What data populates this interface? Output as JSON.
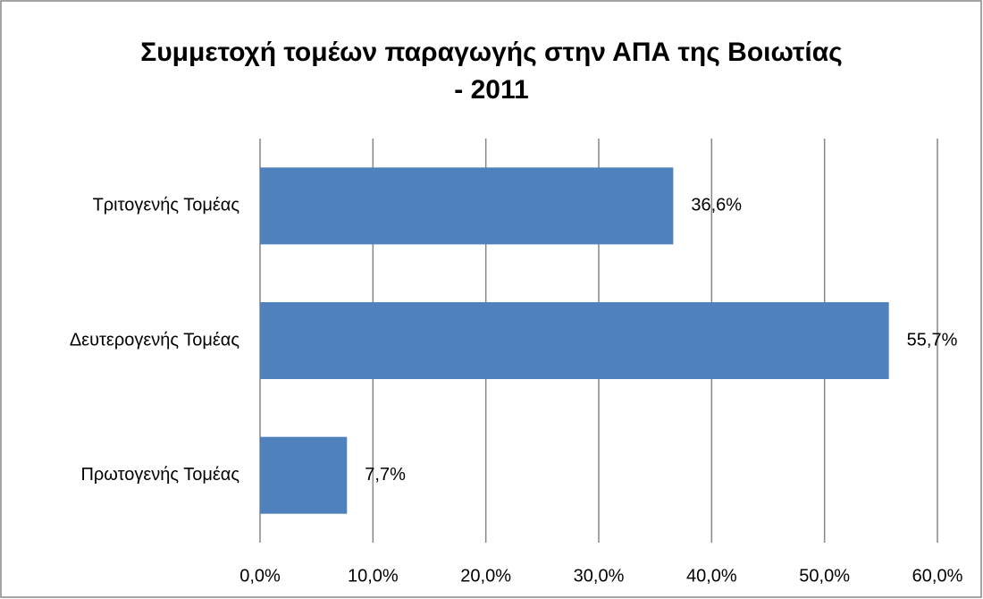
{
  "chart_data": {
    "type": "bar",
    "orientation": "horizontal",
    "title": "Συμμετοχή τομέων παραγωγής στην ΑΠΑ της Βοιωτίας\n- 2011",
    "categories": [
      "Τριτογενής Τομέας",
      "Δευτερογενής Τομέας",
      "Πρωτογενής Τομέας"
    ],
    "values": [
      36.6,
      55.7,
      7.7
    ],
    "value_labels": [
      "36,6%",
      "55,7%",
      "7,7%"
    ],
    "color": "#4f81bd",
    "xlim": [
      0,
      60
    ],
    "xticks": [
      {
        "value": 0,
        "label": "0,0%"
      },
      {
        "value": 10,
        "label": "10,0%"
      },
      {
        "value": 20,
        "label": "20,0%"
      },
      {
        "value": 30,
        "label": "30,0%"
      },
      {
        "value": 40,
        "label": "40,0%"
      },
      {
        "value": 50,
        "label": "50,0%"
      },
      {
        "value": 60,
        "label": "60,0%"
      }
    ],
    "grid": true
  }
}
